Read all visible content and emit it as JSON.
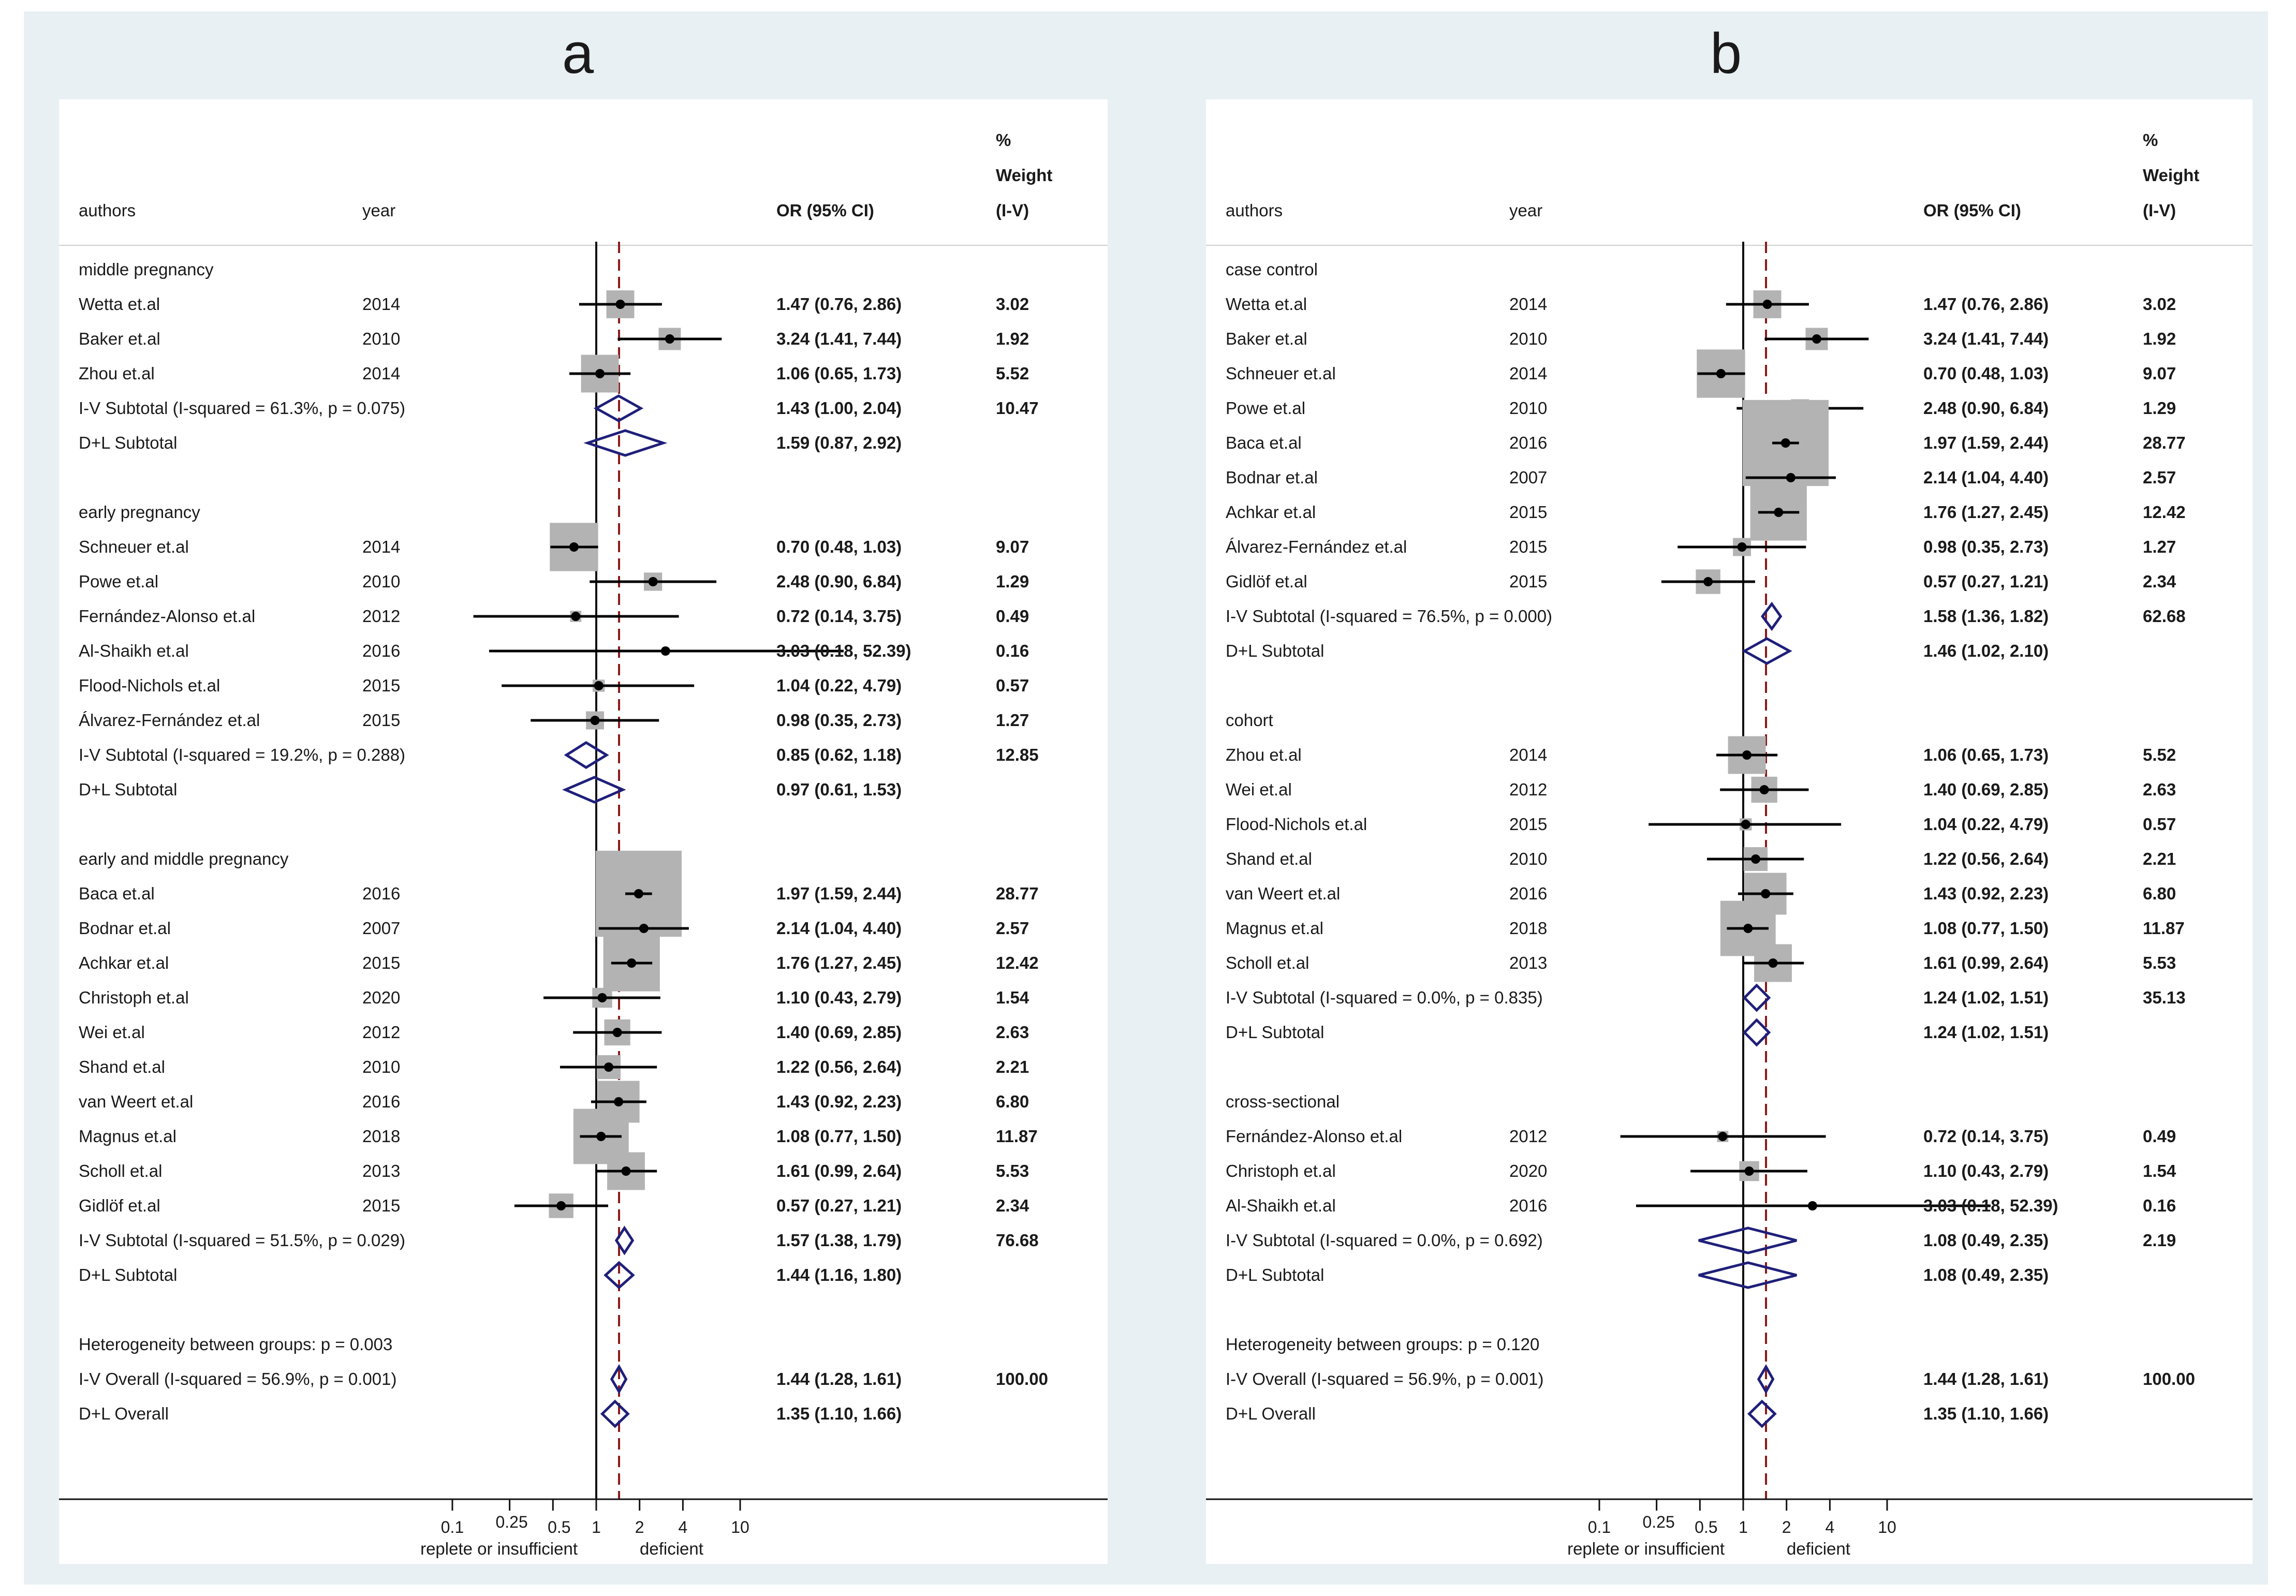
{
  "chart_data": [
    {
      "type": "forest",
      "panel_label": "a",
      "headers": {
        "authors": "authors",
        "year": "year",
        "or": "OR (95% CI)",
        "weight_lines": [
          "%",
          "Weight",
          "(I-V)"
        ]
      },
      "axis": {
        "scale": "log",
        "ticks": [
          0.1,
          0.25,
          0.5,
          1,
          2,
          4,
          10
        ],
        "tick_labels": [
          "0.1",
          "0.25",
          "0.5",
          "1",
          "2",
          "4",
          "10"
        ],
        "left_label": "replete or insufficient",
        "right_label": "deficient",
        "null_value": 1,
        "overall_line": 1.44
      },
      "groups": [
        {
          "name": "middle pregnancy",
          "studies": [
            {
              "author": "Wetta et.al",
              "year": "2014",
              "or": 1.47,
              "lo": 0.76,
              "hi": 2.86,
              "text": "1.47 (0.76, 2.86)",
              "weight": 3.02,
              "weight_text": "3.02"
            },
            {
              "author": "Baker et.al",
              "year": "2010",
              "or": 3.24,
              "lo": 1.41,
              "hi": 7.44,
              "text": "3.24 (1.41, 7.44)",
              "weight": 1.92,
              "weight_text": "1.92"
            },
            {
              "author": "Zhou et.al",
              "year": "2014",
              "or": 1.06,
              "lo": 0.65,
              "hi": 1.73,
              "text": "1.06 (0.65, 1.73)",
              "weight": 5.52,
              "weight_text": "5.52"
            }
          ],
          "iv": {
            "label": "I-V Subtotal  (I-squared = 61.3%, p = 0.075)",
            "or": 1.43,
            "lo": 1.0,
            "hi": 2.04,
            "text": "1.43 (1.00, 2.04)",
            "weight_text": "10.47"
          },
          "dl": {
            "label": "D+L Subtotal",
            "or": 1.59,
            "lo": 0.87,
            "hi": 2.92,
            "text": "1.59 (0.87, 2.92)"
          }
        },
        {
          "name": "early pregnancy",
          "studies": [
            {
              "author": "Schneuer et.al",
              "year": "2014",
              "or": 0.7,
              "lo": 0.48,
              "hi": 1.03,
              "text": "0.70 (0.48, 1.03)",
              "weight": 9.07,
              "weight_text": "9.07"
            },
            {
              "author": "Powe et.al",
              "year": "2010",
              "or": 2.48,
              "lo": 0.9,
              "hi": 6.84,
              "text": "2.48 (0.90, 6.84)",
              "weight": 1.29,
              "weight_text": "1.29"
            },
            {
              "author": "Fernández-Alonso et.al",
              "year": "2012",
              "or": 0.72,
              "lo": 0.14,
              "hi": 3.75,
              "text": "0.72 (0.14, 3.75)",
              "weight": 0.49,
              "weight_text": "0.49"
            },
            {
              "author": "Al-Shaikh et.al",
              "year": "2016",
              "or": 3.03,
              "lo": 0.18,
              "hi": 52.39,
              "text": "3.03 (0.18, 52.39)",
              "weight": 0.16,
              "weight_text": "0.16"
            },
            {
              "author": "Flood-Nichols et.al",
              "year": "2015",
              "or": 1.04,
              "lo": 0.22,
              "hi": 4.79,
              "text": "1.04 (0.22, 4.79)",
              "weight": 0.57,
              "weight_text": "0.57"
            },
            {
              "author": "Álvarez-Fernández et.al",
              "year": "2015",
              "or": 0.98,
              "lo": 0.35,
              "hi": 2.73,
              "text": "0.98 (0.35, 2.73)",
              "weight": 1.27,
              "weight_text": "1.27"
            }
          ],
          "iv": {
            "label": "I-V Subtotal  (I-squared = 19.2%, p = 0.288)",
            "or": 0.85,
            "lo": 0.62,
            "hi": 1.18,
            "text": "0.85 (0.62, 1.18)",
            "weight_text": "12.85"
          },
          "dl": {
            "label": "D+L Subtotal",
            "or": 0.97,
            "lo": 0.61,
            "hi": 1.53,
            "text": "0.97 (0.61, 1.53)"
          }
        },
        {
          "name": "early and middle pregnancy",
          "studies": [
            {
              "author": "Baca et.al",
              "year": "2016",
              "or": 1.97,
              "lo": 1.59,
              "hi": 2.44,
              "text": "1.97 (1.59, 2.44)",
              "weight": 28.77,
              "weight_text": "28.77"
            },
            {
              "author": "Bodnar et.al",
              "year": "2007",
              "or": 2.14,
              "lo": 1.04,
              "hi": 4.4,
              "text": "2.14 (1.04, 4.40)",
              "weight": 2.57,
              "weight_text": "2.57"
            },
            {
              "author": "Achkar et.al",
              "year": "2015",
              "or": 1.76,
              "lo": 1.27,
              "hi": 2.45,
              "text": "1.76 (1.27, 2.45)",
              "weight": 12.42,
              "weight_text": "12.42"
            },
            {
              "author": "Christoph et.al",
              "year": "2020",
              "or": 1.1,
              "lo": 0.43,
              "hi": 2.79,
              "text": "1.10 (0.43, 2.79)",
              "weight": 1.54,
              "weight_text": "1.54"
            },
            {
              "author": "Wei et.al",
              "year": "2012",
              "or": 1.4,
              "lo": 0.69,
              "hi": 2.85,
              "text": "1.40 (0.69, 2.85)",
              "weight": 2.63,
              "weight_text": "2.63"
            },
            {
              "author": "Shand et.al",
              "year": "2010",
              "or": 1.22,
              "lo": 0.56,
              "hi": 2.64,
              "text": "1.22 (0.56, 2.64)",
              "weight": 2.21,
              "weight_text": "2.21"
            },
            {
              "author": "van Weert et.al",
              "year": "2016",
              "or": 1.43,
              "lo": 0.92,
              "hi": 2.23,
              "text": "1.43 (0.92, 2.23)",
              "weight": 6.8,
              "weight_text": "6.80"
            },
            {
              "author": "Magnus et.al",
              "year": "2018",
              "or": 1.08,
              "lo": 0.77,
              "hi": 1.5,
              "text": "1.08 (0.77, 1.50)",
              "weight": 11.87,
              "weight_text": "11.87"
            },
            {
              "author": "Scholl et.al",
              "year": "2013",
              "or": 1.61,
              "lo": 0.99,
              "hi": 2.64,
              "text": "1.61 (0.99, 2.64)",
              "weight": 5.53,
              "weight_text": "5.53"
            },
            {
              "author": "Gidlöf et.al",
              "year": "2015",
              "or": 0.57,
              "lo": 0.27,
              "hi": 1.21,
              "text": "0.57 (0.27, 1.21)",
              "weight": 2.34,
              "weight_text": "2.34"
            }
          ],
          "iv": {
            "label": "I-V Subtotal  (I-squared = 51.5%, p = 0.029)",
            "or": 1.57,
            "lo": 1.38,
            "hi": 1.79,
            "text": "1.57 (1.38, 1.79)",
            "weight_text": "76.68"
          },
          "dl": {
            "label": "D+L Subtotal",
            "or": 1.44,
            "lo": 1.16,
            "hi": 1.8,
            "text": "1.44 (1.16, 1.80)"
          }
        }
      ],
      "heterogeneity": "Heterogeneity between groups: p = 0.003",
      "overall_iv": {
        "label": "I-V Overall  (I-squared = 56.9%, p = 0.001)",
        "or": 1.44,
        "lo": 1.28,
        "hi": 1.61,
        "text": "1.44 (1.28, 1.61)",
        "weight_text": "100.00"
      },
      "overall_dl": {
        "label": "D+L Overall",
        "or": 1.35,
        "lo": 1.1,
        "hi": 1.66,
        "text": "1.35 (1.10, 1.66)"
      }
    },
    {
      "type": "forest",
      "panel_label": "b",
      "headers": {
        "authors": "authors",
        "year": "year",
        "or": "OR (95% CI)",
        "weight_lines": [
          "%",
          "Weight",
          "(I-V)"
        ]
      },
      "axis": {
        "scale": "log",
        "ticks": [
          0.1,
          0.25,
          0.5,
          1,
          2,
          4,
          10
        ],
        "tick_labels": [
          "0.1",
          "0.25",
          "0.5",
          "1",
          "2",
          "4",
          "10"
        ],
        "left_label": "replete or insufficient",
        "right_label": "deficient",
        "null_value": 1,
        "overall_line": 1.44
      },
      "groups": [
        {
          "name": "case control",
          "studies": [
            {
              "author": "Wetta et.al",
              "year": "2014",
              "or": 1.47,
              "lo": 0.76,
              "hi": 2.86,
              "text": "1.47 (0.76, 2.86)",
              "weight": 3.02,
              "weight_text": "3.02"
            },
            {
              "author": "Baker et.al",
              "year": "2010",
              "or": 3.24,
              "lo": 1.41,
              "hi": 7.44,
              "text": "3.24 (1.41, 7.44)",
              "weight": 1.92,
              "weight_text": "1.92"
            },
            {
              "author": "Schneuer et.al",
              "year": "2014",
              "or": 0.7,
              "lo": 0.48,
              "hi": 1.03,
              "text": "0.70 (0.48, 1.03)",
              "weight": 9.07,
              "weight_text": "9.07"
            },
            {
              "author": "Powe et.al",
              "year": "2010",
              "or": 2.48,
              "lo": 0.9,
              "hi": 6.84,
              "text": "2.48 (0.90, 6.84)",
              "weight": 1.29,
              "weight_text": "1.29"
            },
            {
              "author": "Baca et.al",
              "year": "2016",
              "or": 1.97,
              "lo": 1.59,
              "hi": 2.44,
              "text": "1.97 (1.59, 2.44)",
              "weight": 28.77,
              "weight_text": "28.77"
            },
            {
              "author": "Bodnar et.al",
              "year": "2007",
              "or": 2.14,
              "lo": 1.04,
              "hi": 4.4,
              "text": "2.14 (1.04, 4.40)",
              "weight": 2.57,
              "weight_text": "2.57"
            },
            {
              "author": "Achkar et.al",
              "year": "2015",
              "or": 1.76,
              "lo": 1.27,
              "hi": 2.45,
              "text": "1.76 (1.27, 2.45)",
              "weight": 12.42,
              "weight_text": "12.42"
            },
            {
              "author": "Álvarez-Fernández et.al",
              "year": "2015",
              "or": 0.98,
              "lo": 0.35,
              "hi": 2.73,
              "text": "0.98 (0.35, 2.73)",
              "weight": 1.27,
              "weight_text": "1.27"
            },
            {
              "author": "Gidlöf et.al",
              "year": "2015",
              "or": 0.57,
              "lo": 0.27,
              "hi": 1.21,
              "text": "0.57 (0.27, 1.21)",
              "weight": 2.34,
              "weight_text": "2.34"
            }
          ],
          "iv": {
            "label": "I-V Subtotal  (I-squared = 76.5%, p = 0.000)",
            "or": 1.58,
            "lo": 1.36,
            "hi": 1.82,
            "text": "1.58 (1.36, 1.82)",
            "weight_text": "62.68"
          },
          "dl": {
            "label": "D+L Subtotal",
            "or": 1.46,
            "lo": 1.02,
            "hi": 2.1,
            "text": "1.46 (1.02, 2.10)"
          }
        },
        {
          "name": "cohort",
          "studies": [
            {
              "author": "Zhou et.al",
              "year": "2014",
              "or": 1.06,
              "lo": 0.65,
              "hi": 1.73,
              "text": "1.06 (0.65, 1.73)",
              "weight": 5.52,
              "weight_text": "5.52"
            },
            {
              "author": "Wei et.al",
              "year": "2012",
              "or": 1.4,
              "lo": 0.69,
              "hi": 2.85,
              "text": "1.40 (0.69, 2.85)",
              "weight": 2.63,
              "weight_text": "2.63"
            },
            {
              "author": "Flood-Nichols et.al",
              "year": "2015",
              "or": 1.04,
              "lo": 0.22,
              "hi": 4.79,
              "text": "1.04 (0.22, 4.79)",
              "weight": 0.57,
              "weight_text": "0.57"
            },
            {
              "author": "Shand et.al",
              "year": "2010",
              "or": 1.22,
              "lo": 0.56,
              "hi": 2.64,
              "text": "1.22 (0.56, 2.64)",
              "weight": 2.21,
              "weight_text": "2.21"
            },
            {
              "author": "van Weert et.al",
              "year": "2016",
              "or": 1.43,
              "lo": 0.92,
              "hi": 2.23,
              "text": "1.43 (0.92, 2.23)",
              "weight": 6.8,
              "weight_text": "6.80"
            },
            {
              "author": "Magnus et.al",
              "year": "2018",
              "or": 1.08,
              "lo": 0.77,
              "hi": 1.5,
              "text": "1.08 (0.77, 1.50)",
              "weight": 11.87,
              "weight_text": "11.87"
            },
            {
              "author": "Scholl et.al",
              "year": "2013",
              "or": 1.61,
              "lo": 0.99,
              "hi": 2.64,
              "text": "1.61 (0.99, 2.64)",
              "weight": 5.53,
              "weight_text": "5.53"
            }
          ],
          "iv": {
            "label": "I-V Subtotal  (I-squared = 0.0%, p = 0.835)",
            "or": 1.24,
            "lo": 1.02,
            "hi": 1.51,
            "text": "1.24 (1.02, 1.51)",
            "weight_text": "35.13"
          },
          "dl": {
            "label": "D+L Subtotal",
            "or": 1.24,
            "lo": 1.02,
            "hi": 1.51,
            "text": "1.24 (1.02, 1.51)"
          }
        },
        {
          "name": "cross-sectional",
          "studies": [
            {
              "author": "Fernández-Alonso et.al",
              "year": "2012",
              "or": 0.72,
              "lo": 0.14,
              "hi": 3.75,
              "text": "0.72 (0.14, 3.75)",
              "weight": 0.49,
              "weight_text": "0.49"
            },
            {
              "author": "Christoph et.al",
              "year": "2020",
              "or": 1.1,
              "lo": 0.43,
              "hi": 2.79,
              "text": "1.10 (0.43, 2.79)",
              "weight": 1.54,
              "weight_text": "1.54"
            },
            {
              "author": "Al-Shaikh et.al",
              "year": "2016",
              "or": 3.03,
              "lo": 0.18,
              "hi": 52.39,
              "text": "3.03 (0.18, 52.39)",
              "weight": 0.16,
              "weight_text": "0.16"
            }
          ],
          "iv": {
            "label": "I-V Subtotal  (I-squared = 0.0%, p = 0.692)",
            "or": 1.08,
            "lo": 0.49,
            "hi": 2.35,
            "text": "1.08 (0.49, 2.35)",
            "weight_text": "2.19"
          },
          "dl": {
            "label": "D+L Subtotal",
            "or": 1.08,
            "lo": 0.49,
            "hi": 2.35,
            "text": "1.08 (0.49, 2.35)"
          }
        }
      ],
      "heterogeneity": "Heterogeneity between groups: p = 0.120",
      "overall_iv": {
        "label": "I-V Overall  (I-squared = 56.9%, p = 0.001)",
        "or": 1.44,
        "lo": 1.28,
        "hi": 1.61,
        "text": "1.44 (1.28, 1.61)",
        "weight_text": "100.00"
      },
      "overall_dl": {
        "label": "D+L Overall",
        "or": 1.35,
        "lo": 1.1,
        "hi": 1.66,
        "text": "1.35 (1.10, 1.66)"
      }
    }
  ],
  "colors": {
    "background": "#e9f0f3",
    "panel": "#ffffff",
    "box": "#b3b3b3",
    "diamond": "#1f1f7a",
    "ref_line": "#8b1a1a",
    "text": "#1a1a1a"
  }
}
